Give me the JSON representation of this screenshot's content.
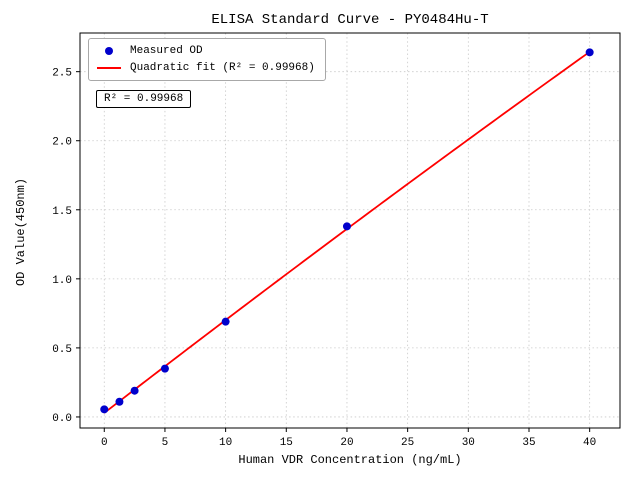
{
  "chart_data": {
    "type": "scatter",
    "title": "ELISA Standard Curve - PY0484Hu-T",
    "xlabel": "Human VDR Concentration (ng/mL)",
    "ylabel": "OD Value(450nm)",
    "xlim": [
      -2,
      42.5
    ],
    "ylim": [
      -0.08,
      2.78
    ],
    "x_ticks": [
      0,
      5,
      10,
      15,
      20,
      25,
      30,
      35,
      40
    ],
    "y_ticks": [
      0,
      0.5,
      1,
      1.5,
      2,
      2.5
    ],
    "grid": true,
    "grid_color": "#c9c9c9",
    "legend_position": "upper-left",
    "series": [
      {
        "name": "Measured OD",
        "type": "scatter",
        "color": "#0000cc",
        "x": [
          0,
          1.25,
          2.5,
          5,
          10,
          20,
          40
        ],
        "y": [
          0.055,
          0.11,
          0.19,
          0.35,
          0.69,
          1.38,
          2.64
        ]
      },
      {
        "name": "Quadratic fit (R² = 0.99968)",
        "type": "line",
        "fit": "quadratic",
        "color": "#ff0000",
        "r_squared": 0.99968
      }
    ],
    "annotation": "R² = 0.99968"
  }
}
